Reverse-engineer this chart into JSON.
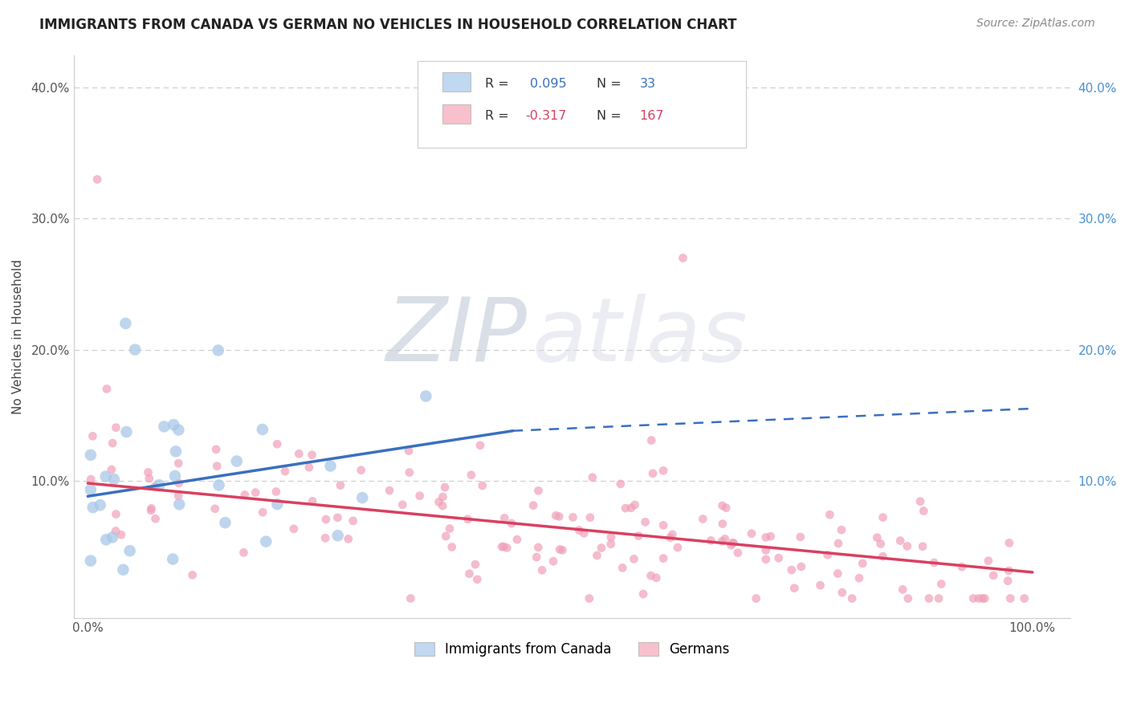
{
  "title": "IMMIGRANTS FROM CANADA VS GERMAN NO VEHICLES IN HOUSEHOLD CORRELATION CHART",
  "source": "Source: ZipAtlas.com",
  "ylabel": "No Vehicles in Household",
  "R_blue": 0.095,
  "N_blue": 33,
  "R_pink": -0.317,
  "N_pink": 167,
  "blue_dot_color": "#a8c8e8",
  "pink_dot_color": "#f0a0b8",
  "blue_line_color": "#3a6fbf",
  "pink_line_color": "#d94060",
  "blue_legend_fill": "#c0d8f0",
  "pink_legend_fill": "#f8c0cc",
  "legend_edge_color": "#cccccc",
  "background_color": "#ffffff",
  "grid_color": "#cccccc",
  "right_tick_color": "#4a90d0",
  "title_fontsize": 12,
  "source_fontsize": 10,
  "legend_text_color_r": "#222222",
  "legend_val_color_blue": "#3a6fbf",
  "legend_val_color_pink": "#d94060",
  "watermark_zip_color": "#c0c8d8",
  "watermark_atlas_color": "#d8dce8"
}
